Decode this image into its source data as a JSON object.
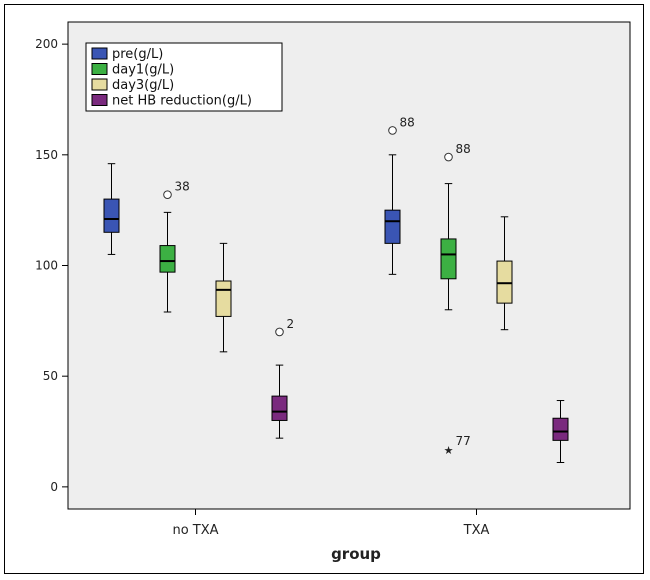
{
  "chart_data": {
    "type": "boxplot",
    "title": "",
    "xlabel": "group",
    "ylabel": "",
    "ylim": [
      -10,
      210
    ],
    "yticks": [
      0,
      50,
      100,
      150,
      200
    ],
    "categories": [
      "no TXA",
      "TXA"
    ],
    "legend_position": "top-left",
    "grid": false,
    "series": [
      {
        "name": "pre(g/L)",
        "color": "#3a55b4",
        "boxes": [
          {
            "category": "no TXA",
            "whisker_low": 105,
            "q1": 115,
            "median": 121,
            "q3": 130,
            "whisker_high": 146,
            "outliers": []
          },
          {
            "category": "TXA",
            "whisker_low": 96,
            "q1": 110,
            "median": 120,
            "q3": 125,
            "whisker_high": 150,
            "outliers": [
              {
                "value": 161,
                "label": "88",
                "marker": "circle"
              }
            ]
          }
        ]
      },
      {
        "name": "day1(g/L)",
        "color": "#3cb043",
        "boxes": [
          {
            "category": "no TXA",
            "whisker_low": 79,
            "q1": 97,
            "median": 102,
            "q3": 109,
            "whisker_high": 124,
            "outliers": [
              {
                "value": 132,
                "label": "38",
                "marker": "circle"
              }
            ]
          },
          {
            "category": "TXA",
            "whisker_low": 80,
            "q1": 94,
            "median": 105,
            "q3": 112,
            "whisker_high": 137,
            "outliers": [
              {
                "value": 149,
                "label": "88",
                "marker": "circle"
              },
              {
                "value": 17,
                "label": "77",
                "marker": "star"
              }
            ]
          }
        ]
      },
      {
        "name": "day3(g/L)",
        "color": "#e6dca0",
        "boxes": [
          {
            "category": "no TXA",
            "whisker_low": 61,
            "q1": 77,
            "median": 89,
            "q3": 93,
            "whisker_high": 110,
            "outliers": []
          },
          {
            "category": "TXA",
            "whisker_low": 71,
            "q1": 83,
            "median": 92,
            "q3": 102,
            "whisker_high": 122,
            "outliers": []
          }
        ]
      },
      {
        "name": "net HB reduction(g/L)",
        "color": "#7a2a7e",
        "boxes": [
          {
            "category": "no TXA",
            "whisker_low": 22,
            "q1": 30,
            "median": 34,
            "q3": 41,
            "whisker_high": 55,
            "outliers": [
              {
                "value": 70,
                "label": "2",
                "marker": "circle"
              }
            ]
          },
          {
            "category": "TXA",
            "whisker_low": 11,
            "q1": 21,
            "median": 25,
            "q3": 31,
            "whisker_high": 39,
            "outliers": []
          }
        ]
      }
    ]
  }
}
